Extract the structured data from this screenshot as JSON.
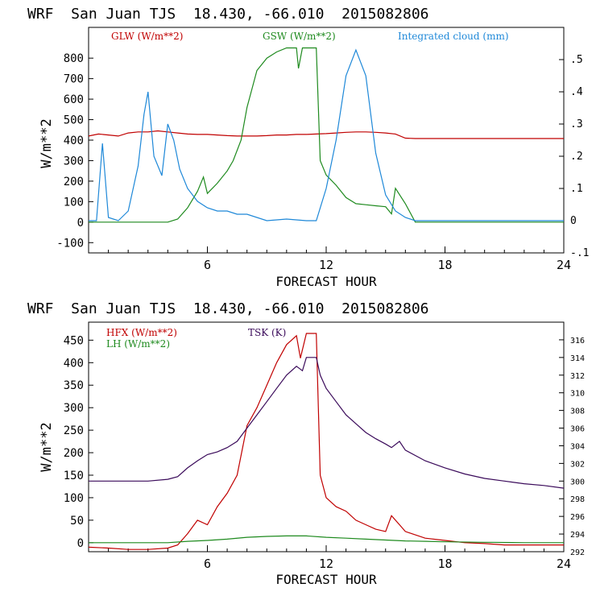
{
  "chart_data": [
    {
      "type": "line",
      "title": "WRF  San Juan TJS  18.430, -66.010  2015082806",
      "xlabel": "FORECAST HOUR",
      "ylabel": "W/m**2",
      "xlim": [
        0,
        24
      ],
      "ylim": [
        -150,
        950
      ],
      "y2lim": [
        -0.1,
        0.6
      ],
      "x_ticks": [
        6,
        12,
        18,
        24
      ],
      "y_ticks": [
        -100,
        0,
        100,
        200,
        300,
        400,
        500,
        600,
        700,
        800
      ],
      "y2_ticks": [
        -0.1,
        0,
        0.1,
        0.2,
        0.3,
        0.4,
        0.5
      ],
      "y2_tick_labels": [
        "-.1",
        "0",
        ".1",
        ".2",
        ".3",
        ".4",
        ".5"
      ],
      "grid": false,
      "series": [
        {
          "name": "GLW (W/m**2)",
          "color": "#c00000",
          "axis": "left",
          "x": [
            0,
            0.5,
            1,
            1.5,
            2,
            2.5,
            3,
            3.5,
            4,
            4.5,
            5,
            5.5,
            6,
            6.5,
            7,
            7.5,
            8,
            8.5,
            9,
            9.5,
            10,
            10.5,
            11,
            11.5,
            12,
            12.5,
            13,
            13.5,
            14,
            14.5,
            15,
            15.5,
            16,
            16.5,
            17,
            18,
            19,
            20,
            21,
            22,
            23,
            24
          ],
          "values": [
            420,
            430,
            425,
            420,
            435,
            440,
            440,
            445,
            440,
            435,
            430,
            428,
            428,
            425,
            422,
            420,
            420,
            420,
            422,
            425,
            425,
            428,
            428,
            430,
            432,
            435,
            438,
            440,
            440,
            438,
            435,
            430,
            410,
            408,
            408,
            408,
            408,
            408,
            408,
            408,
            408,
            408
          ]
        },
        {
          "name": "GSW (W/m**2)",
          "color": "#1e8a1e",
          "axis": "left",
          "x": [
            0,
            4,
            4.5,
            5,
            5.5,
            5.8,
            6,
            6.5,
            7,
            7.3,
            7.7,
            8,
            8.5,
            9,
            9.5,
            10,
            10.5,
            10.6,
            10.8,
            11,
            11.5,
            11.7,
            12,
            12.5,
            13,
            13.5,
            14,
            14.5,
            15,
            15.3,
            15.5,
            16,
            16.5,
            24
          ],
          "values": [
            0,
            0,
            15,
            70,
            150,
            220,
            140,
            190,
            250,
            300,
            400,
            560,
            740,
            800,
            830,
            850,
            850,
            750,
            850,
            850,
            850,
            300,
            230,
            180,
            120,
            90,
            85,
            80,
            75,
            40,
            165,
            90,
            0,
            0
          ]
        },
        {
          "name": "Integrated cloud (mm)",
          "color": "#1e88d8",
          "axis": "right",
          "x": [
            0,
            0.4,
            0.7,
            1,
            1.5,
            2,
            2.5,
            2.8,
            3,
            3.3,
            3.7,
            4,
            4.3,
            4.6,
            5,
            5.5,
            6,
            6.5,
            7,
            7.5,
            8,
            9,
            10,
            11,
            11.5,
            12,
            12.5,
            13,
            13.5,
            14,
            14.5,
            15,
            15.5,
            16,
            16.5,
            17,
            24
          ],
          "values": [
            0,
            0,
            0.24,
            0.01,
            0,
            0.03,
            0.17,
            0.33,
            0.4,
            0.2,
            0.14,
            0.3,
            0.25,
            0.16,
            0.1,
            0.06,
            0.04,
            0.03,
            0.03,
            0.02,
            0.02,
            0,
            0.005,
            0,
            0,
            0.1,
            0.25,
            0.45,
            0.53,
            0.45,
            0.21,
            0.08,
            0.03,
            0.01,
            0,
            0,
            0
          ]
        }
      ]
    },
    {
      "type": "line",
      "title": "WRF  San Juan TJS  18.430, -66.010  2015082806",
      "xlabel": "FORECAST HOUR",
      "ylabel": "W/m**2",
      "xlim": [
        0,
        24
      ],
      "ylim": [
        -20,
        490
      ],
      "y2lim": [
        292,
        318
      ],
      "x_ticks": [
        6,
        12,
        18,
        24
      ],
      "y_ticks": [
        0,
        50,
        100,
        150,
        200,
        250,
        300,
        350,
        400,
        450
      ],
      "y2_ticks": [
        292,
        294,
        296,
        298,
        300,
        302,
        304,
        306,
        308,
        310,
        312,
        314,
        316
      ],
      "grid": false,
      "series": [
        {
          "name": "HFX (W/m**2)",
          "color": "#c00000",
          "axis": "left",
          "x": [
            0,
            1,
            2,
            3,
            4,
            4.5,
            5,
            5.5,
            6,
            6.5,
            7,
            7.5,
            8,
            8.5,
            9,
            9.5,
            10,
            10.5,
            10.7,
            11,
            11.5,
            11.7,
            12,
            12.5,
            13,
            13.5,
            14,
            14.5,
            15,
            15.3,
            15.7,
            16,
            17,
            18,
            19,
            20,
            21,
            22,
            23,
            24
          ],
          "values": [
            -10,
            -12,
            -15,
            -15,
            -12,
            -5,
            20,
            50,
            40,
            80,
            110,
            150,
            260,
            300,
            350,
            400,
            440,
            460,
            410,
            465,
            465,
            150,
            100,
            80,
            70,
            50,
            40,
            30,
            25,
            60,
            40,
            25,
            10,
            5,
            0,
            -2,
            -5,
            -5,
            -5,
            -5
          ]
        },
        {
          "name": "LH (W/m**2)",
          "color": "#1e8a1e",
          "axis": "left",
          "x": [
            0,
            2,
            4,
            5,
            6,
            7,
            8,
            9,
            10,
            11,
            12,
            13,
            14,
            15,
            16,
            17,
            18,
            20,
            22,
            24
          ],
          "values": [
            0,
            0,
            0,
            3,
            5,
            8,
            12,
            14,
            15,
            15,
            12,
            10,
            8,
            6,
            4,
            3,
            2,
            1,
            0,
            0
          ]
        },
        {
          "name": "TSK (K)",
          "color": "#3a0a5a",
          "axis": "right",
          "x": [
            0,
            1,
            2,
            3,
            4,
            4.5,
            5,
            5.5,
            6,
            6.5,
            7,
            7.5,
            8,
            8.5,
            9,
            9.5,
            10,
            10.5,
            10.8,
            11,
            11.5,
            11.7,
            12,
            12.5,
            13,
            13.5,
            14,
            14.5,
            15,
            15.3,
            15.7,
            16,
            17,
            18,
            19,
            20,
            21,
            22,
            23,
            24
          ],
          "values": [
            300,
            300,
            300,
            300,
            300.2,
            300.5,
            301.5,
            302.3,
            303,
            303.3,
            303.8,
            304.5,
            306,
            307.5,
            309,
            310.5,
            312,
            313,
            312.5,
            314,
            314,
            312,
            310.5,
            309,
            307.5,
            306.5,
            305.5,
            304.8,
            304.2,
            303.8,
            304.5,
            303.5,
            302.3,
            301.5,
            300.8,
            300.3,
            300,
            299.7,
            299.5,
            299.2
          ]
        }
      ]
    }
  ]
}
